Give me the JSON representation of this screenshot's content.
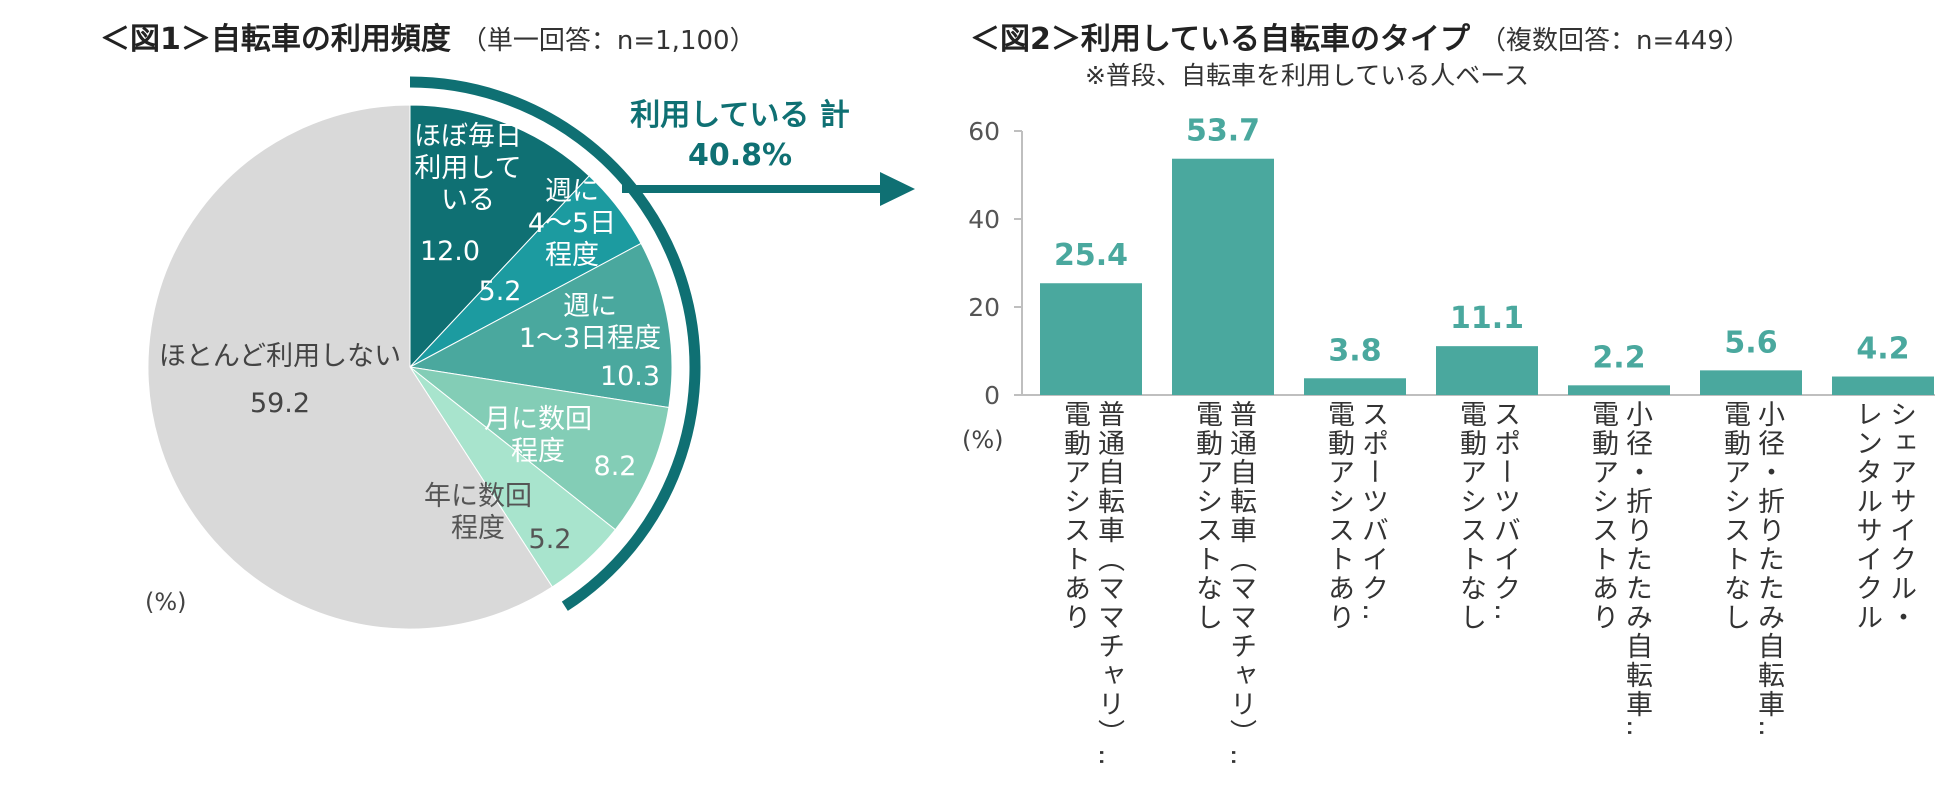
{
  "figure1": {
    "title": "＜図1＞自転車の利用頻度",
    "subtitle": "（単一回答：n=1,100）",
    "unit": "(%)",
    "total_label": "利用している 計",
    "total_value": "40.8%"
  },
  "figure2": {
    "title": "＜図2＞利用している自転車のタイプ",
    "subtitle": "（複数回答：n=449）",
    "note": "※普段、自転車を利用している人ベース",
    "unit": "(%)"
  },
  "colors": {
    "slice1": "#0f7073",
    "slice2": "#1c9ba0",
    "slice3": "#4aa89e",
    "slice4": "#83cdb6",
    "slice5": "#a8e4cd",
    "slice6": "#d9d9d9",
    "bar": "#4aa89e",
    "label_teal": "#4aa89e",
    "arc": "#0f7073"
  },
  "chart_data": [
    {
      "type": "pie",
      "title": "＜図1＞自転車の利用頻度",
      "subtitle": "（単一回答：n=1,100）",
      "slices": [
        {
          "label_lines": [
            "ほぼ毎日",
            "利用して",
            "いる"
          ],
          "value": 12.0,
          "value_text": "12.0"
        },
        {
          "label_lines": [
            "週に",
            "4～5日",
            "程度"
          ],
          "value": 5.2,
          "value_text": "5.2"
        },
        {
          "label_lines": [
            "週に",
            "1～3日程度"
          ],
          "value": 10.3,
          "value_text": "10.3"
        },
        {
          "label_lines": [
            "月に数回",
            "程度"
          ],
          "value": 8.2,
          "value_text": "8.2"
        },
        {
          "label_lines": [
            "年に数回",
            "程度"
          ],
          "value": 5.2,
          "value_text": "5.2"
        },
        {
          "label_lines": [
            "ほとんど利用しない"
          ],
          "value": 59.2,
          "value_text": "59.2"
        }
      ]
    },
    {
      "type": "bar",
      "title": "＜図2＞利用している自転車のタイプ",
      "subtitle": "（複数回答：n=449）",
      "ylim": [
        0,
        60
      ],
      "yticks": [
        0,
        20,
        40,
        60
      ],
      "ylabel": "(%)",
      "categories": [
        [
          "普通自転車（ママチャリ）‥",
          "電動アシストあり"
        ],
        [
          "普通自転車（ママチャリ）‥",
          "電動アシストなし"
        ],
        [
          "スポーツバイク‥",
          "電動アシストあり"
        ],
        [
          "スポーツバイク‥",
          "電動アシストなし"
        ],
        [
          "小径・折りたたみ自転車‥",
          "電動アシストあり"
        ],
        [
          "小径・折りたたみ自転車‥",
          "電動アシストなし"
        ],
        [
          "シェアサイクル・",
          "レンタルサイクル"
        ]
      ],
      "values": [
        25.4,
        53.7,
        3.8,
        11.1,
        2.2,
        5.6,
        4.2
      ],
      "value_texts": [
        "25.4",
        "53.7",
        "3.8",
        "11.1",
        "2.2",
        "5.6",
        "4.2"
      ]
    }
  ]
}
